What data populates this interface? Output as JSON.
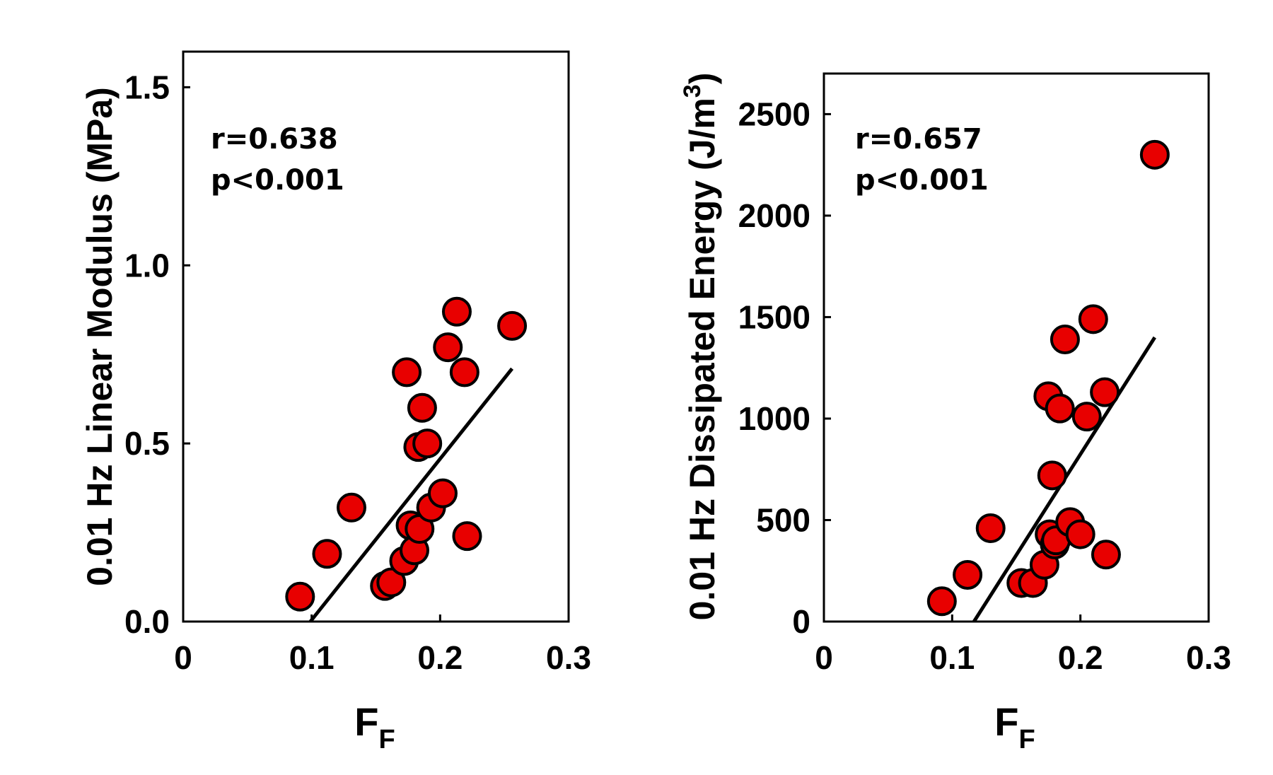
{
  "chart_data": [
    {
      "type": "scatter",
      "xlabel": "F",
      "xlabel_subscript": "F",
      "ylabel": "0.01 Hz Linear Modulus (MPa)",
      "xlim": [
        0,
        0.3
      ],
      "ylim": [
        0,
        1.6
      ],
      "xticks": [
        "0",
        "0.1",
        "0.2",
        "0.3"
      ],
      "yticks": [
        "0.0",
        "0.5",
        "1.0",
        "1.5"
      ],
      "grid": false,
      "annotation": [
        "r=0.638",
        "p<0.001"
      ],
      "marker_color": "#e80000",
      "fit_line": {
        "x": [
          0.099,
          0.256
        ],
        "y": [
          0.0,
          0.71
        ]
      },
      "points": [
        [
          0.091,
          0.07
        ],
        [
          0.112,
          0.19
        ],
        [
          0.131,
          0.32
        ],
        [
          0.157,
          0.1
        ],
        [
          0.162,
          0.11
        ],
        [
          0.172,
          0.17
        ],
        [
          0.174,
          0.7
        ],
        [
          0.177,
          0.27
        ],
        [
          0.18,
          0.2
        ],
        [
          0.183,
          0.49
        ],
        [
          0.184,
          0.26
        ],
        [
          0.186,
          0.6
        ],
        [
          0.19,
          0.5
        ],
        [
          0.193,
          0.32
        ],
        [
          0.202,
          0.36
        ],
        [
          0.206,
          0.77
        ],
        [
          0.213,
          0.87
        ],
        [
          0.219,
          0.7
        ],
        [
          0.221,
          0.24
        ],
        [
          0.256,
          0.83
        ]
      ]
    },
    {
      "type": "scatter",
      "xlabel": "F",
      "xlabel_subscript": "F",
      "ylabel": "0.01 Hz Dissipated Energy (J/m",
      "ylabel_superscript": "3",
      "ylabel_close": ")",
      "xlim": [
        0,
        0.3
      ],
      "ylim": [
        0,
        2700
      ],
      "xticks": [
        "0",
        "0.1",
        "0.2",
        "0.3"
      ],
      "yticks": [
        "0",
        "500",
        "1000",
        "1500",
        "2000",
        "2500"
      ],
      "grid": false,
      "annotation": [
        "r=0.657",
        "p<0.001"
      ],
      "marker_color": "#e80000",
      "fit_line": {
        "x": [
          0.117,
          0.258
        ],
        "y": [
          0,
          1400
        ]
      },
      "points": [
        [
          0.092,
          100
        ],
        [
          0.112,
          230
        ],
        [
          0.13,
          460
        ],
        [
          0.154,
          190
        ],
        [
          0.163,
          190
        ],
        [
          0.172,
          280
        ],
        [
          0.175,
          1110
        ],
        [
          0.176,
          430
        ],
        [
          0.178,
          720
        ],
        [
          0.18,
          380
        ],
        [
          0.181,
          400
        ],
        [
          0.184,
          1050
        ],
        [
          0.188,
          1390
        ],
        [
          0.192,
          490
        ],
        [
          0.2,
          430
        ],
        [
          0.205,
          1010
        ],
        [
          0.21,
          1490
        ],
        [
          0.219,
          1130
        ],
        [
          0.22,
          330
        ],
        [
          0.258,
          2300
        ]
      ]
    }
  ]
}
